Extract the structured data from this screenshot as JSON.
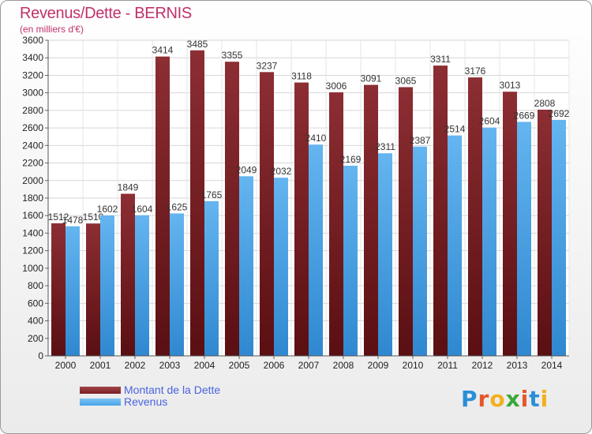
{
  "chart_data": {
    "type": "bar",
    "title": "Revenus/Dette - BERNIS",
    "subtitle": "(en milliers d'€)",
    "categories": [
      "2000",
      "2001",
      "2002",
      "2003",
      "2004",
      "2005",
      "2006",
      "2007",
      "2008",
      "2009",
      "2010",
      "2011",
      "2012",
      "2013",
      "2014"
    ],
    "series": [
      {
        "name": "Montant de la Dette",
        "color": "#7a1f23",
        "values": [
          1512,
          1510,
          1849,
          3414,
          3485,
          3355,
          3237,
          3118,
          3006,
          3091,
          3065,
          3311,
          3176,
          3013,
          2808
        ]
      },
      {
        "name": "Revenus",
        "color": "#4aa3e8",
        "values": [
          1478,
          1602,
          1604,
          1625,
          1765,
          2049,
          2032,
          2410,
          2169,
          2311,
          2387,
          2514,
          2604,
          2669,
          2692
        ]
      }
    ],
    "ylim": [
      0,
      3600
    ],
    "yticks": [
      0,
      200,
      400,
      600,
      800,
      1000,
      1200,
      1400,
      1600,
      1800,
      2000,
      2200,
      2400,
      2600,
      2800,
      3000,
      3200,
      3400,
      3600
    ],
    "grid": true,
    "legend_position": "bottom-left"
  },
  "logo": {
    "letters": [
      "P",
      "r",
      "o",
      "x",
      "i",
      "t",
      "i"
    ],
    "colors": [
      "#2a8fd8",
      "#e5572a",
      "#f2b01e",
      "#3aa83a",
      "#e5572a",
      "#2a8fd8",
      "#f2b01e"
    ]
  }
}
